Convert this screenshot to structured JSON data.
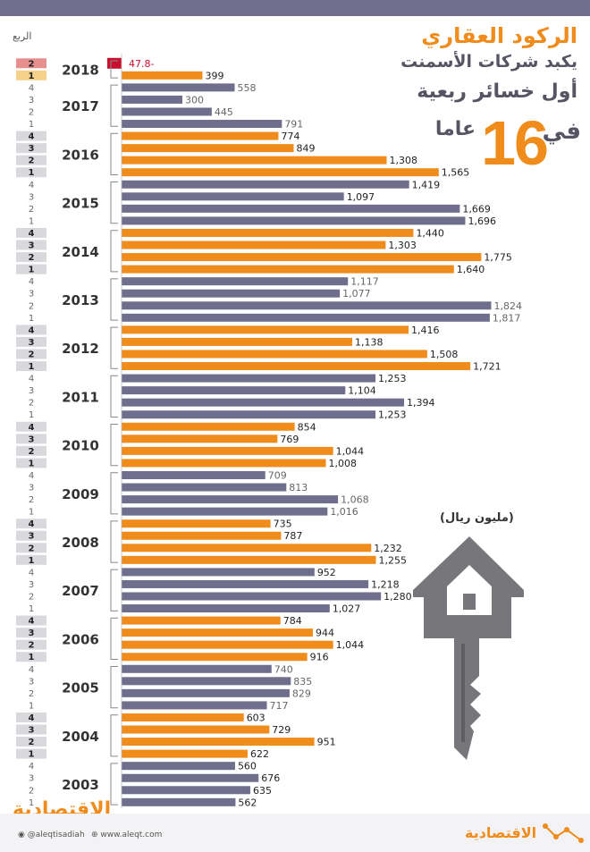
{
  "header": {
    "quarter_label": "الربع",
    "title_line1": "الركود العقاري",
    "title_line2": "يكبد شركات الأسمنت",
    "title_line3": "أول خسائر ربعية",
    "title_fi": "في",
    "title_number": "16",
    "title_years": "عاما",
    "unit": "(مليون ريال)"
  },
  "footer": {
    "logo_left": "الاقتصادية",
    "social": "@aleqtisadiah",
    "website": "www.aleqt.com",
    "logo_right": "الاقتصادية"
  },
  "colors": {
    "orange": "#ef8c1c",
    "purple": "#6f6e8c",
    "negative": "#c8102e",
    "key_gray": "#77767a"
  },
  "chart_data": {
    "type": "bar",
    "orientation": "horizontal",
    "title": "",
    "xlabel": "",
    "ylabel": "الربع",
    "unit": "(مليون ريال)",
    "groups": [
      {
        "year": "2018",
        "bars": [
          {
            "q": "2",
            "value": -47.8,
            "label": "47.8-"
          },
          {
            "q": "1",
            "value": 399,
            "label": "399"
          }
        ]
      },
      {
        "year": "2017",
        "bars": [
          {
            "q": "4",
            "value": 558,
            "label": "558"
          },
          {
            "q": "3",
            "value": 300,
            "label": "300"
          },
          {
            "q": "2",
            "value": 445,
            "label": "445"
          },
          {
            "q": "1",
            "value": 791,
            "label": "791"
          }
        ]
      },
      {
        "year": "2016",
        "bars": [
          {
            "q": "4",
            "value": 774,
            "label": "774"
          },
          {
            "q": "3",
            "value": 849,
            "label": "849"
          },
          {
            "q": "2",
            "value": 1308,
            "label": "1,308"
          },
          {
            "q": "1",
            "value": 1565,
            "label": "1,565"
          }
        ]
      },
      {
        "year": "2015",
        "bars": [
          {
            "q": "4",
            "value": 1419,
            "label": "1,419"
          },
          {
            "q": "3",
            "value": 1097,
            "label": "1,097"
          },
          {
            "q": "2",
            "value": 1669,
            "label": "1,669"
          },
          {
            "q": "1",
            "value": 1696,
            "label": "1,696"
          }
        ]
      },
      {
        "year": "2014",
        "bars": [
          {
            "q": "4",
            "value": 1440,
            "label": "1,440"
          },
          {
            "q": "3",
            "value": 1303,
            "label": "1,303"
          },
          {
            "q": "2",
            "value": 1775,
            "label": "1,775"
          },
          {
            "q": "1",
            "value": 1640,
            "label": "1,640"
          }
        ]
      },
      {
        "year": "2013",
        "bars": [
          {
            "q": "4",
            "value": 1117,
            "label": "1,117"
          },
          {
            "q": "3",
            "value": 1077,
            "label": "1,077"
          },
          {
            "q": "2",
            "value": 1824,
            "label": "1,824"
          },
          {
            "q": "1",
            "value": 1817,
            "label": "1,817"
          }
        ]
      },
      {
        "year": "2012",
        "bars": [
          {
            "q": "4",
            "value": 1416,
            "label": "1,416"
          },
          {
            "q": "3",
            "value": 1138,
            "label": "1,138"
          },
          {
            "q": "2",
            "value": 1508,
            "label": "1,508"
          },
          {
            "q": "1",
            "value": 1721,
            "label": "1,721"
          }
        ]
      },
      {
        "year": "2011",
        "bars": [
          {
            "q": "4",
            "value": 1253,
            "label": "1,253"
          },
          {
            "q": "3",
            "value": 1104,
            "label": "1,104"
          },
          {
            "q": "2",
            "value": 1394,
            "label": "1,394"
          },
          {
            "q": "1",
            "value": 1253,
            "label": "1,253"
          }
        ]
      },
      {
        "year": "2010",
        "bars": [
          {
            "q": "4",
            "value": 854,
            "label": "854"
          },
          {
            "q": "3",
            "value": 769,
            "label": "769"
          },
          {
            "q": "2",
            "value": 1044,
            "label": "1,044"
          },
          {
            "q": "1",
            "value": 1008,
            "label": "1,008"
          }
        ]
      },
      {
        "year": "2009",
        "bars": [
          {
            "q": "4",
            "value": 709,
            "label": "709"
          },
          {
            "q": "3",
            "value": 813,
            "label": "813"
          },
          {
            "q": "2",
            "value": 1068,
            "label": "1,068"
          },
          {
            "q": "1",
            "value": 1016,
            "label": "1,016"
          }
        ]
      },
      {
        "year": "2008",
        "bars": [
          {
            "q": "4",
            "value": 735,
            "label": "735"
          },
          {
            "q": "3",
            "value": 787,
            "label": "787"
          },
          {
            "q": "2",
            "value": 1232,
            "label": "1,232"
          },
          {
            "q": "1",
            "value": 1255,
            "label": "1,255"
          }
        ]
      },
      {
        "year": "2007",
        "bars": [
          {
            "q": "4",
            "value": 952,
            "label": "952"
          },
          {
            "q": "3",
            "value": 1218,
            "label": "1,218"
          },
          {
            "q": "2",
            "value": 1280,
            "label": "1,280"
          },
          {
            "q": "1",
            "value": 1027,
            "label": "1,027"
          }
        ]
      },
      {
        "year": "2006",
        "bars": [
          {
            "q": "4",
            "value": 784,
            "label": "784"
          },
          {
            "q": "3",
            "value": 944,
            "label": "944"
          },
          {
            "q": "2",
            "value": 1044,
            "label": "1,044"
          },
          {
            "q": "1",
            "value": 916,
            "label": "916"
          }
        ]
      },
      {
        "year": "2005",
        "bars": [
          {
            "q": "4",
            "value": 740,
            "label": "740"
          },
          {
            "q": "3",
            "value": 835,
            "label": "835"
          },
          {
            "q": "2",
            "value": 829,
            "label": "829"
          },
          {
            "q": "1",
            "value": 717,
            "label": "717"
          }
        ]
      },
      {
        "year": "2004",
        "bars": [
          {
            "q": "4",
            "value": 603,
            "label": "603"
          },
          {
            "q": "3",
            "value": 729,
            "label": "729"
          },
          {
            "q": "2",
            "value": 951,
            "label": "951"
          },
          {
            "q": "1",
            "value": 622,
            "label": "622"
          }
        ]
      },
      {
        "year": "2003",
        "bars": [
          {
            "q": "4",
            "value": 560,
            "label": "560"
          },
          {
            "q": "3",
            "value": 676,
            "label": "676"
          },
          {
            "q": "2",
            "value": 635,
            "label": "635"
          },
          {
            "q": "1",
            "value": 562,
            "label": "562"
          }
        ]
      }
    ]
  }
}
